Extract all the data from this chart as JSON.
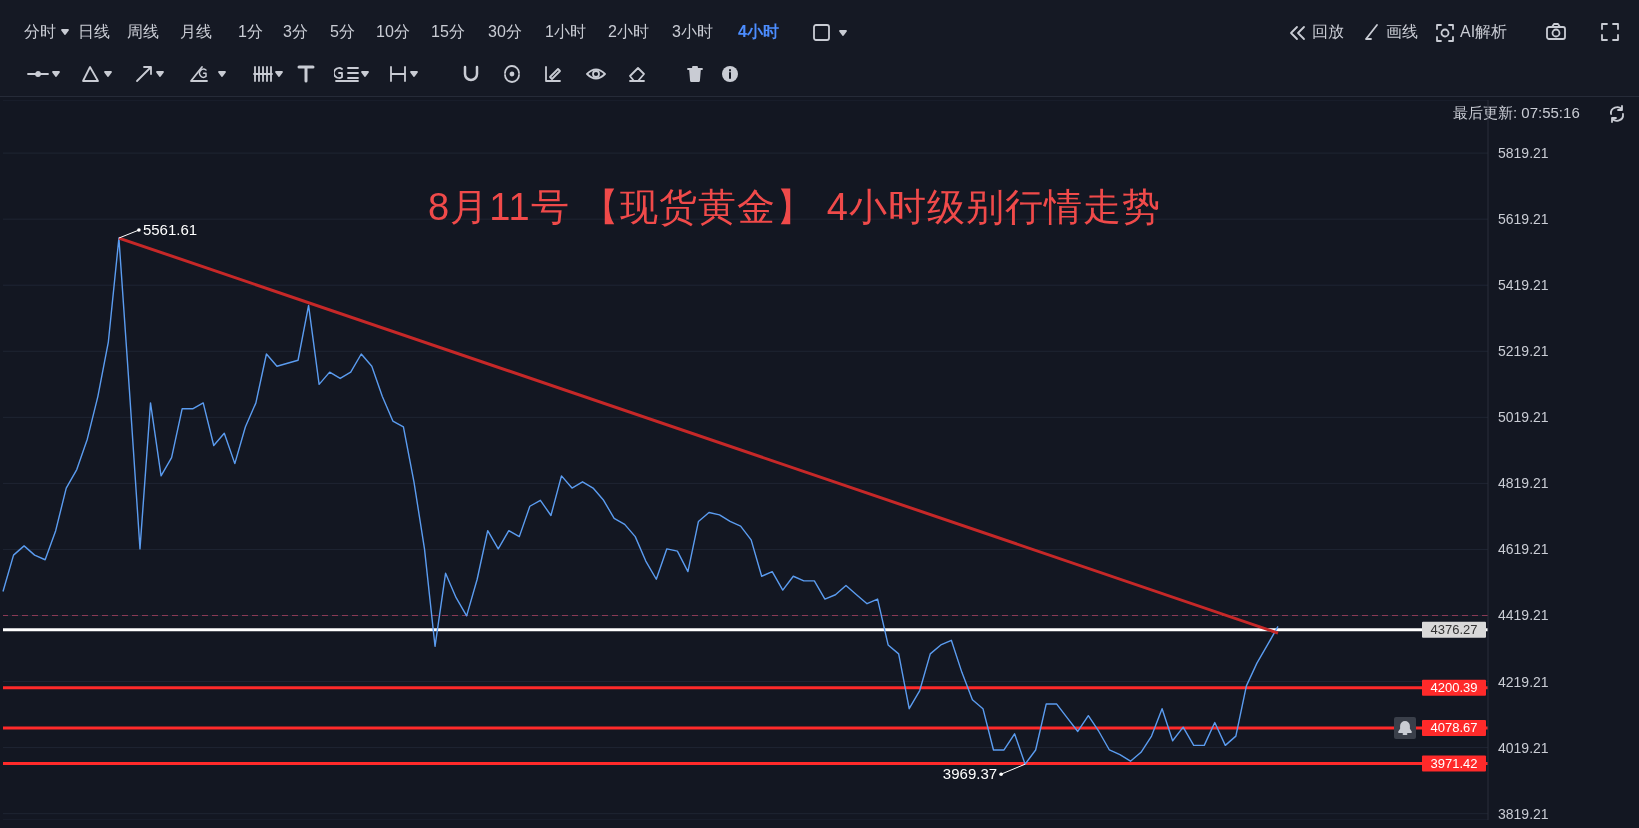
{
  "chart_data": {
    "type": "line",
    "title": "8月11号 【现货黄金】 4小时级别行情走势",
    "categories": [
      null,
      null,
      null,
      null,
      null,
      null,
      null,
      null,
      null,
      null,
      null,
      null,
      null,
      null,
      null,
      null,
      null,
      null,
      null,
      null,
      null,
      null,
      null,
      null,
      null,
      null,
      null,
      null,
      null,
      null,
      null,
      null,
      null,
      null,
      null,
      null,
      null,
      null,
      null,
      null,
      null,
      null,
      null,
      null,
      null,
      null,
      null,
      null,
      null,
      null,
      null,
      null,
      null,
      null,
      null,
      null,
      null,
      null,
      null,
      null,
      null,
      null,
      null,
      null,
      null,
      null,
      null,
      null,
      null,
      null,
      null,
      null,
      null,
      null,
      null,
      null,
      null,
      null,
      null,
      null,
      null,
      null,
      null,
      null,
      null,
      null,
      null,
      null,
      null,
      null,
      null,
      null,
      null,
      null,
      null,
      null,
      null,
      null,
      null,
      null,
      null,
      null,
      null,
      null,
      null,
      null,
      null,
      null,
      null,
      null,
      null,
      null,
      null,
      null,
      null,
      null,
      null,
      null,
      null,
      null,
      null,
      null
    ],
    "series": [
      {
        "color": "#5b9cf0",
        "values": [
          4492,
          4602,
          4630,
          4602,
          4588,
          4676,
          4805,
          4861,
          4953,
          5082,
          5248,
          5562,
          5100,
          4621,
          5063,
          4842,
          4897,
          5045,
          5045,
          5063,
          4934,
          4971,
          4879,
          4990,
          5063,
          5211,
          5174,
          5183,
          5192,
          5358,
          5119,
          5156,
          5137,
          5156,
          5211,
          5174,
          5082,
          5008,
          4990,
          4824,
          4621,
          4326,
          4547,
          4473,
          4418,
          4529,
          4676,
          4621,
          4676,
          4658,
          4750,
          4768,
          4722,
          4842,
          4805,
          4824,
          4805,
          4768,
          4713,
          4695,
          4658,
          4584,
          4529,
          4621,
          4614,
          4552,
          4704,
          4731,
          4724,
          4704,
          4690,
          4648,
          4538,
          4552,
          4496,
          4538,
          4524,
          4524,
          4469,
          4482,
          4510,
          4482,
          4455,
          4469,
          4330,
          4303,
          4137,
          4192,
          4303,
          4330,
          4344,
          4247,
          4164,
          4137,
          4012,
          4012,
          4061,
          3969,
          4012,
          4151,
          4151,
          4109,
          4068,
          4116,
          4068,
          4012,
          3998,
          3978,
          4005,
          4054,
          4137,
          4040,
          4081,
          4026,
          4026,
          4095,
          4026,
          4054,
          4206,
          4275,
          4330,
          4386
        ]
      },
      {
        "color": "#c62828",
        "values": [
          null,
          null,
          null,
          null,
          null,
          null,
          null,
          null,
          null,
          null,
          null,
          5562,
          null,
          null,
          null,
          null,
          null,
          null,
          null,
          null,
          null,
          null,
          null,
          null,
          null,
          null,
          null,
          null,
          null,
          null,
          null,
          null,
          null,
          null,
          null,
          null,
          null,
          null,
          null,
          null,
          null,
          null,
          null,
          null,
          null,
          null,
          null,
          null,
          null,
          null,
          null,
          null,
          null,
          null,
          null,
          null,
          null,
          null,
          null,
          null,
          null,
          null,
          null,
          null,
          null,
          null,
          null,
          null,
          null,
          null,
          null,
          null,
          null,
          null,
          null,
          null,
          null,
          null,
          null,
          null,
          null,
          null,
          null,
          null,
          null,
          null,
          null,
          null,
          null,
          null,
          null,
          null,
          null,
          null,
          null,
          null,
          null,
          null,
          null,
          null,
          null,
          null,
          null,
          null,
          null,
          null,
          null,
          null,
          null,
          null,
          null,
          null,
          null,
          null,
          null,
          null,
          null,
          null,
          null,
          null,
          null,
          4366
        ]
      }
    ],
    "ylim": [
      3800,
      5980
    ],
    "yticks": [
      3819.21,
      4019.21,
      4219.21,
      4419.21,
      4619.21,
      4819.21,
      5019.21,
      5219.21,
      5419.21,
      5619.21,
      5819.21
    ],
    "tick_labels": "y",
    "grid": "y",
    "legend": false,
    "marker": "none",
    "line_style": "solid",
    "ref_lines": [
      {
        "axis": "y",
        "value": 4419.21,
        "color": "#8a3a55",
        "line_style": "dashed"
      },
      {
        "axis": "y",
        "value": 4376.27,
        "label": "4376.27",
        "color": "#ffffff"
      },
      {
        "axis": "y",
        "value": 4200.39,
        "label": "4200.39",
        "color": "#ff2a2a"
      },
      {
        "axis": "y",
        "value": 4078.67,
        "label": "4078.67",
        "color": "#ff2a2a"
      },
      {
        "axis": "y",
        "value": 3971.42,
        "label": "3971.42",
        "color": "#ff2a2a"
      }
    ],
    "annotations": [
      "分时",
      "日线",
      "周线",
      "月线",
      "1分",
      "3分",
      "5分",
      "10分",
      "15分",
      "30分",
      "1小时",
      "2小时",
      "3小时",
      "4小时",
      "回放",
      "画线",
      "AI解析",
      "最后更新: 07:55:16",
      "5561.61",
      "3969.37"
    ]
  }
}
